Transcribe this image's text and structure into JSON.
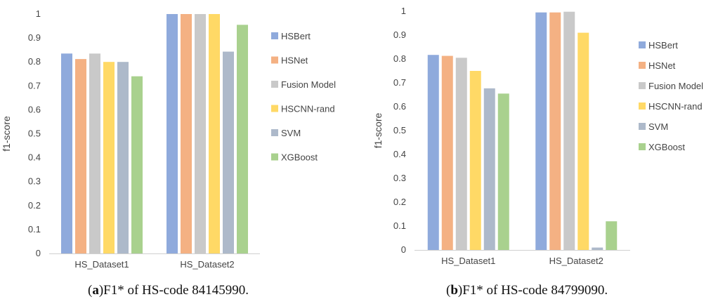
{
  "chart_data": [
    {
      "type": "bar",
      "categories": [
        "HS_Dataset1",
        "HS_Dataset2"
      ],
      "series": [
        {
          "name": "HSBert",
          "color": "#8faadc",
          "values": [
            0.835,
            1.0
          ]
        },
        {
          "name": "HSNet",
          "color": "#f4b183",
          "values": [
            0.812,
            1.0
          ]
        },
        {
          "name": "Fusion Model",
          "color": "#c9c9c9",
          "values": [
            0.835,
            1.0
          ]
        },
        {
          "name": "HSCNN-rand",
          "color": "#ffd966",
          "values": [
            0.8,
            1.0
          ]
        },
        {
          "name": "SVM",
          "color": "#adb9ca",
          "values": [
            0.8,
            0.843
          ]
        },
        {
          "name": "XGBoost",
          "color": "#a9d18e",
          "values": [
            0.74,
            0.955
          ]
        }
      ],
      "ylabel": "f1-score",
      "ylim": [
        0,
        1
      ],
      "yticks": [
        "0",
        "0.1",
        "0.2",
        "0.3",
        "0.4",
        "0.5",
        "0.6",
        "0.7",
        "0.8",
        "0.9",
        "1"
      ],
      "grid": false,
      "legend": "right",
      "caption": {
        "letter": "a",
        "text": "F1* of HS-code 84145990."
      }
    },
    {
      "type": "bar",
      "categories": [
        "HS_Dataset1",
        "HS_Dataset2"
      ],
      "series": [
        {
          "name": "HSBert",
          "color": "#8faadc",
          "values": [
            0.817,
            0.995
          ]
        },
        {
          "name": "HSNet",
          "color": "#f4b183",
          "values": [
            0.813,
            0.995
          ]
        },
        {
          "name": "Fusion Model",
          "color": "#c9c9c9",
          "values": [
            0.805,
            0.998
          ]
        },
        {
          "name": "HSCNN-rand",
          "color": "#ffd966",
          "values": [
            0.75,
            0.91
          ]
        },
        {
          "name": "SVM",
          "color": "#adb9ca",
          "values": [
            0.677,
            0.01
          ]
        },
        {
          "name": "XGBoost",
          "color": "#a9d18e",
          "values": [
            0.655,
            0.12
          ]
        }
      ],
      "ylabel": "f1-score",
      "ylim": [
        0,
        1
      ],
      "yticks": [
        "0",
        "0.1",
        "0.2",
        "0.3",
        "0.4",
        "0.5",
        "0.6",
        "0.7",
        "0.8",
        "0.9",
        "1"
      ],
      "grid": false,
      "legend": "right",
      "caption": {
        "letter": "b",
        "text": "F1* of HS-code 84799090."
      }
    }
  ]
}
